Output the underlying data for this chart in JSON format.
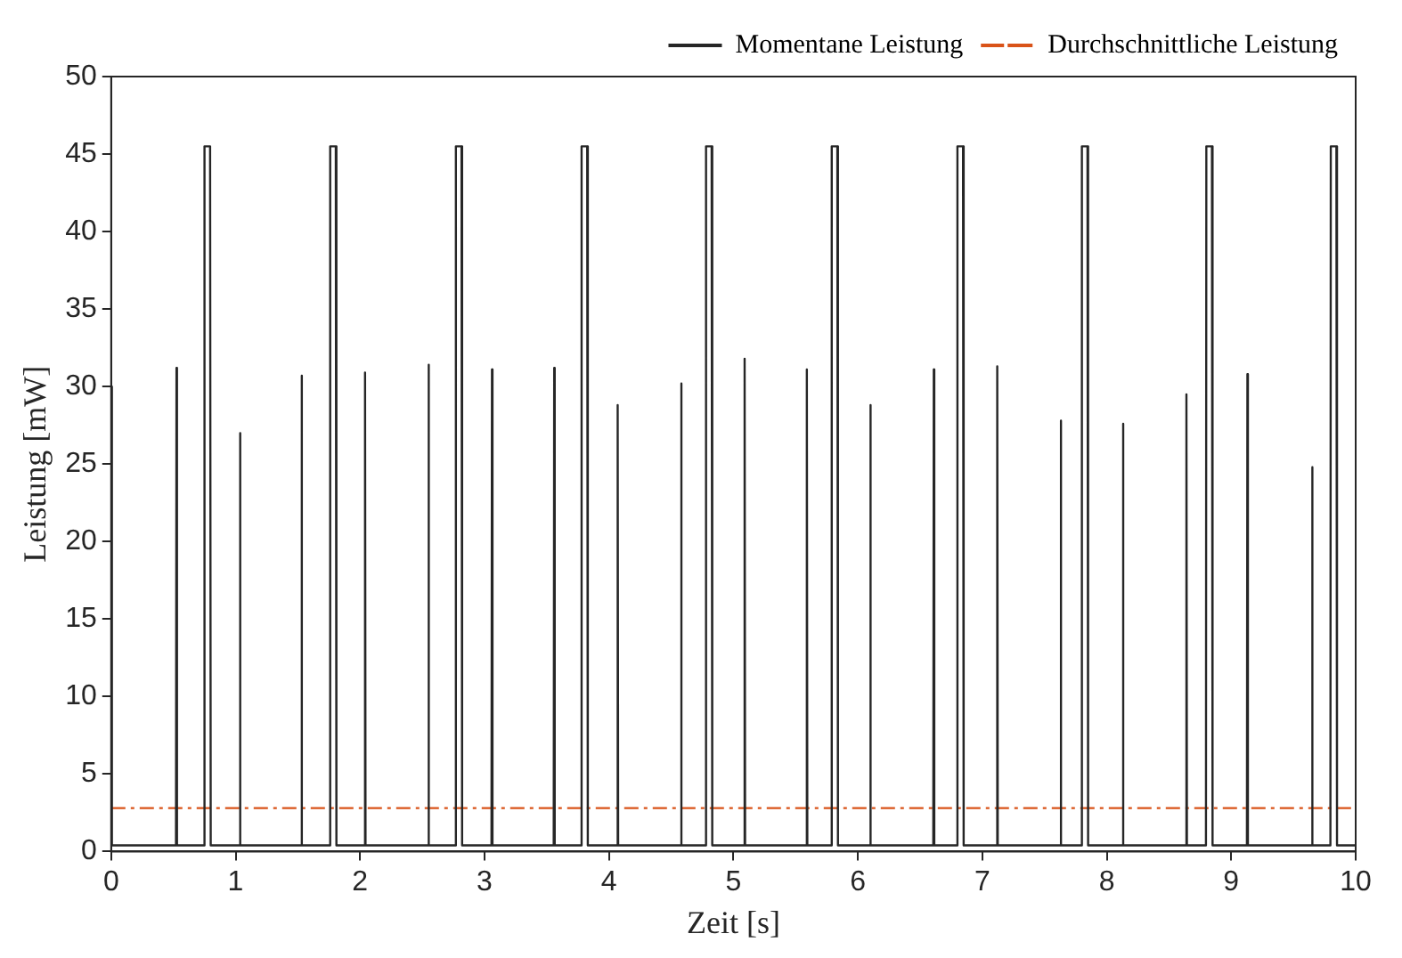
{
  "chart_data": {
    "type": "line",
    "xlabel": "Zeit [s]",
    "ylabel": "Leistung [mW]",
    "xlim": [
      0,
      10
    ],
    "ylim": [
      0,
      50
    ],
    "xticks": [
      0,
      1,
      2,
      3,
      4,
      5,
      6,
      7,
      8,
      9,
      10
    ],
    "yticks": [
      0,
      5,
      10,
      15,
      20,
      25,
      30,
      35,
      40,
      45,
      50
    ],
    "grid": false,
    "legend": "top right",
    "marker": "none",
    "series": [
      {
        "name": "Momentane Leistung",
        "color": "#262626",
        "line_style": "solid",
        "x": [
          0,
          0.006,
          0.521,
          0.525,
          0.529,
          0.747,
          0.75,
          0.795,
          0.8,
          1.031,
          1.035,
          1.039,
          1.526,
          1.53,
          1.534,
          1.757,
          1.76,
          1.805,
          1.81,
          2.036,
          2.04,
          2.044,
          2.546,
          2.55,
          2.554,
          2.767,
          2.77,
          2.815,
          2.82,
          3.056,
          3.06,
          3.064,
          3.556,
          3.56,
          3.564,
          3.777,
          3.78,
          3.825,
          3.83,
          4.066,
          4.07,
          4.074,
          4.576,
          4.58,
          4.584,
          4.777,
          4.78,
          4.825,
          4.83,
          5.086,
          5.09,
          5.094,
          5.586,
          5.59,
          5.594,
          5.787,
          5.79,
          5.835,
          5.84,
          6.096,
          6.1,
          6.104,
          6.606,
          6.61,
          6.614,
          6.797,
          6.8,
          6.845,
          6.85,
          7.116,
          7.12,
          7.124,
          7.626,
          7.63,
          7.634,
          7.797,
          7.8,
          7.845,
          7.85,
          8.126,
          8.13,
          8.134,
          8.636,
          8.64,
          8.644,
          8.797,
          8.8,
          8.845,
          8.85,
          9.126,
          9.13,
          9.134,
          9.646,
          9.65,
          9.654,
          9.797,
          9.8,
          9.845,
          9.85,
          10
        ],
        "values": [
          30,
          0.4,
          0.4,
          31.2,
          0.4,
          0.4,
          45.5,
          45.5,
          0.4,
          0.4,
          27,
          0.4,
          0.4,
          30.7,
          0.4,
          0.4,
          45.5,
          45.5,
          0.4,
          0.4,
          30.9,
          0.4,
          0.4,
          31.4,
          0.4,
          0.4,
          45.5,
          45.5,
          0.4,
          0.4,
          31.1,
          0.4,
          0.4,
          31.2,
          0.4,
          0.4,
          45.5,
          45.5,
          0.4,
          0.4,
          28.8,
          0.4,
          0.4,
          30.2,
          0.4,
          0.4,
          45.5,
          45.5,
          0.4,
          0.4,
          31.8,
          0.4,
          0.4,
          31.1,
          0.4,
          0.4,
          45.5,
          45.5,
          0.4,
          0.4,
          28.8,
          0.4,
          0.4,
          31.1,
          0.4,
          0.4,
          45.5,
          45.5,
          0.4,
          0.4,
          31.3,
          0.4,
          0.4,
          27.8,
          0.4,
          0.4,
          45.5,
          45.5,
          0.4,
          0.4,
          27.6,
          0.4,
          0.4,
          29.5,
          0.4,
          0.4,
          45.5,
          45.5,
          0.4,
          0.4,
          30.8,
          0.4,
          0.4,
          24.8,
          0.4,
          0.4,
          45.5,
          45.5,
          0.4,
          0.4
        ]
      },
      {
        "name": "Durchschnittliche Leistung",
        "color": "#d95319",
        "line_style": "dashed",
        "x": [
          0,
          10
        ],
        "values": [
          2.8,
          2.8
        ]
      }
    ]
  }
}
